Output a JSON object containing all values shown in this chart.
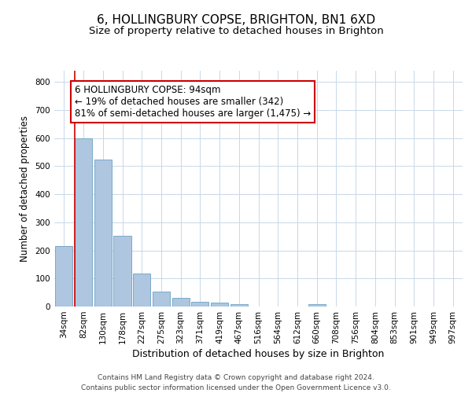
{
  "title1": "6, HOLLINGBURY COPSE, BRIGHTON, BN1 6XD",
  "title2": "Size of property relative to detached houses in Brighton",
  "xlabel": "Distribution of detached houses by size in Brighton",
  "ylabel": "Number of detached properties",
  "categories": [
    "34sqm",
    "82sqm",
    "130sqm",
    "178sqm",
    "227sqm",
    "275sqm",
    "323sqm",
    "371sqm",
    "419sqm",
    "467sqm",
    "516sqm",
    "564sqm",
    "612sqm",
    "660sqm",
    "708sqm",
    "756sqm",
    "804sqm",
    "853sqm",
    "901sqm",
    "949sqm",
    "997sqm"
  ],
  "values": [
    215,
    600,
    525,
    253,
    117,
    53,
    30,
    18,
    14,
    9,
    0,
    0,
    0,
    8,
    0,
    0,
    0,
    0,
    0,
    0,
    0
  ],
  "bar_color": "#aec6df",
  "bar_edge_color": "#7aaac8",
  "highlight_bar_index": 1,
  "highlight_color": "#cc0000",
  "ylim": [
    0,
    840
  ],
  "yticks": [
    0,
    100,
    200,
    300,
    400,
    500,
    600,
    700,
    800
  ],
  "annotation_title": "6 HOLLINGBURY COPSE: 94sqm",
  "annotation_line1": "← 19% of detached houses are smaller (342)",
  "annotation_line2": "81% of semi-detached houses are larger (1,475) →",
  "annotation_box_color": "#cc0000",
  "footer_line1": "Contains HM Land Registry data © Crown copyright and database right 2024.",
  "footer_line2": "Contains public sector information licensed under the Open Government Licence v3.0.",
  "bg_color": "#ffffff",
  "grid_color": "#c8d8e8",
  "title1_fontsize": 11,
  "title2_fontsize": 9.5,
  "xlabel_fontsize": 9,
  "ylabel_fontsize": 8.5,
  "tick_fontsize": 7.5,
  "footer_fontsize": 6.5,
  "ann_fontsize": 8.5
}
